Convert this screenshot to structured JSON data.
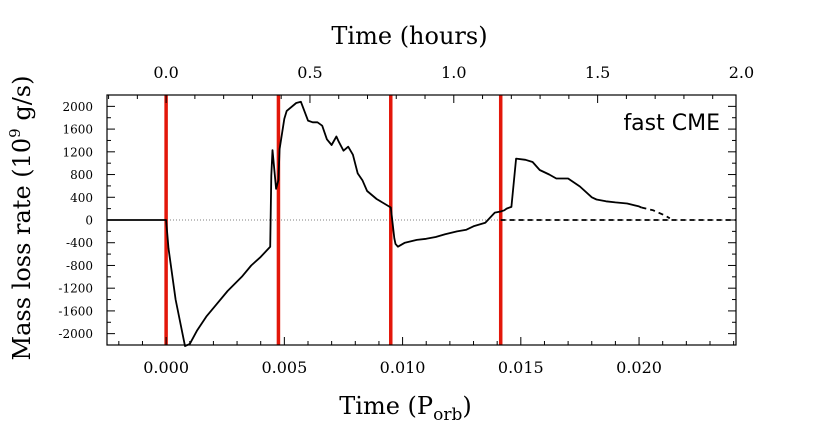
{
  "chart_data": {
    "type": "line",
    "annotation": "fast CME",
    "xlabel_bottom": {
      "main": "Time (P",
      "sub": "orb",
      "close": ")"
    },
    "xlabel_top": "Time (hours)",
    "ylabel": {
      "main": "Mass loss rate (10",
      "sup": "9",
      "unit": " g/s)"
    },
    "xlim": [
      -0.0025,
      0.0241
    ],
    "ylim": [
      -2200,
      2200
    ],
    "x_ticks": [
      0.0,
      0.005,
      0.01,
      0.015,
      0.02
    ],
    "x_tick_labels": [
      "0.000",
      "0.005",
      "0.010",
      "0.015",
      "0.020"
    ],
    "x_minor_step": 0.001,
    "top_ticks_hours": [
      0.0,
      0.5,
      1.0,
      1.5,
      2.0
    ],
    "top_tick_labels": [
      "0.0",
      "0.5",
      "1.0",
      "1.5",
      "2.0"
    ],
    "top_minor_step_hours": 0.1,
    "hours_per_porb": 82.2,
    "y_ticks": [
      2000,
      1600,
      1200,
      800,
      400,
      0,
      -400,
      -800,
      -1200,
      -1600,
      -2000
    ],
    "y_tick_labels": [
      "2000",
      "1600",
      "1200",
      "800",
      "400",
      "0",
      "-400",
      "-800",
      "-1200",
      "-1600",
      "-2000"
    ],
    "y_minor_step": 200,
    "zero_line": true,
    "event_lines_x": [
      0.0,
      0.00475,
      0.0095,
      0.01415
    ],
    "colors": {
      "series": "#000000",
      "event_lines": "#e3170a",
      "zero_line": "#555555"
    },
    "series": [
      {
        "style": "solid",
        "x": [
          -0.0025,
          -0.0021,
          -0.0015,
          -0.0008,
          -0.0002,
          0.0,
          0.0001,
          0.0004,
          0.0008,
          0.001,
          0.0013,
          0.0017,
          0.0021,
          0.0026,
          0.0032,
          0.0036,
          0.004,
          0.0044,
          0.00445,
          0.0045,
          0.00465,
          0.00475,
          0.0048,
          0.005,
          0.0051,
          0.0055,
          0.0057,
          0.006,
          0.0062,
          0.0064,
          0.0066,
          0.0068,
          0.007,
          0.0072,
          0.0073,
          0.0075,
          0.0077,
          0.0079,
          0.0081,
          0.0083,
          0.0085,
          0.0089,
          0.0095,
          0.00965,
          0.0097,
          0.0098,
          0.0101,
          0.0106,
          0.011,
          0.0114,
          0.0118,
          0.0123,
          0.0127,
          0.013,
          0.0135,
          0.0139,
          0.01415,
          0.0143,
          0.0144,
          0.0146,
          0.0148,
          0.0152,
          0.0155,
          0.0158,
          0.0162,
          0.0165,
          0.017,
          0.0175,
          0.018,
          0.0182,
          0.0186,
          0.019,
          0.0195,
          0.02,
          0.0201
        ],
        "y": [
          0,
          0,
          0,
          0,
          0,
          0,
          -500,
          -1400,
          -2220,
          -2180,
          -1950,
          -1700,
          -1500,
          -1250,
          -1000,
          -800,
          -650,
          -470,
          780,
          1230,
          550,
          700,
          1250,
          1780,
          1920,
          2060,
          2080,
          1750,
          1720,
          1720,
          1660,
          1420,
          1320,
          1470,
          1380,
          1220,
          1290,
          1150,
          820,
          700,
          510,
          370,
          220,
          -320,
          -420,
          -470,
          -400,
          -350,
          -330,
          -300,
          -250,
          -200,
          -170,
          -110,
          -50,
          130,
          150,
          170,
          200,
          230,
          1080,
          1060,
          1020,
          880,
          800,
          730,
          730,
          590,
          400,
          360,
          330,
          310,
          290,
          240,
          220
        ]
      },
      {
        "style": "dashed",
        "x": [
          0.0201,
          0.0206,
          0.0211,
          0.0213
        ],
        "y": [
          220,
          170,
          80,
          30
        ]
      },
      {
        "style": "dashed",
        "x": [
          0.01415,
          0.0241
        ],
        "y": [
          0,
          0
        ]
      }
    ]
  }
}
